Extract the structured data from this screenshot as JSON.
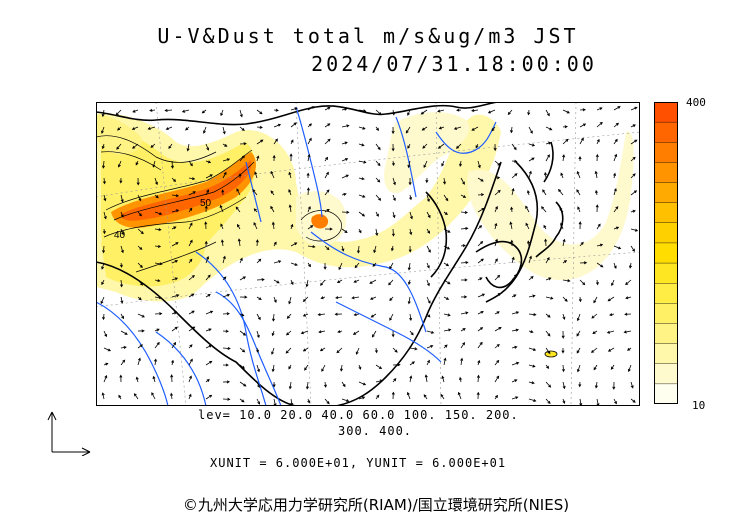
{
  "header": {
    "title_line1": "U-V&Dust total m/s&ug/m3 JST",
    "title_line2": "2024/07/31.18:00:00"
  },
  "legend": {
    "max_label": "400",
    "min_label": "10",
    "colors": [
      "#fffff0",
      "#fffacd",
      "#fff7aa",
      "#fff385",
      "#fff066",
      "#ffec44",
      "#ffe622",
      "#ffdd00",
      "#ffd000",
      "#ffc000",
      "#ffaa00",
      "#ff9400",
      "#ff7e00",
      "#ff6600",
      "#ff5000"
    ]
  },
  "footer": {
    "levels_line1": "lev= 10.0 20.0 40.0 60.0 100. 150. 200.",
    "levels_line2": "300. 400.",
    "units": "XUNIT = 6.000E+01, YUNIT = 6.000E+01",
    "credit": "©九州大学応用力学研究所(RIAM)/国立環境研究所(NIES)"
  },
  "map_labels": {
    "contour_a": "50",
    "contour_b": "40"
  },
  "colors": {
    "coast": "#000000",
    "river": "#1f5fff",
    "grid": "#999999",
    "vector": "#000000"
  }
}
